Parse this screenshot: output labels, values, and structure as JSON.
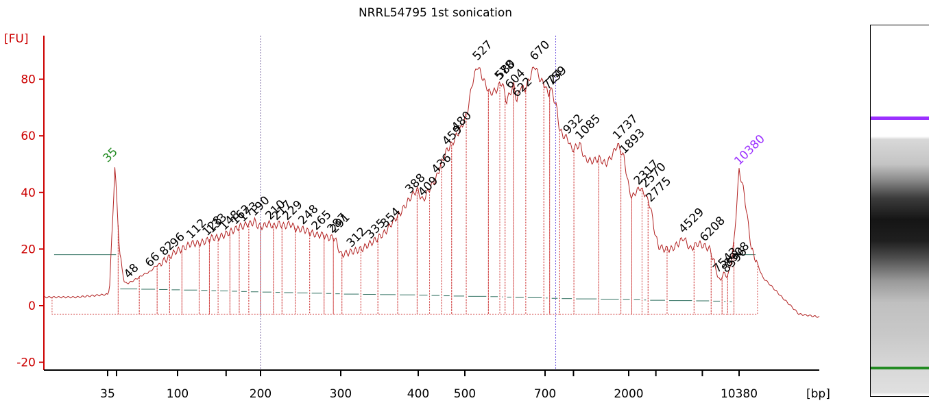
{
  "chart_data": {
    "type": "line",
    "title": "NRRL54795 1st sonication",
    "ylabel": "[FU]",
    "xlabel": "[bp]",
    "ylim": [
      -22,
      92
    ],
    "yticks": [
      -20,
      0,
      20,
      40,
      60,
      80
    ],
    "xtick_labels": [
      "35",
      "100",
      "200",
      "300",
      "400",
      "500",
      "700",
      "2000",
      "10380"
    ],
    "grid": false,
    "colors": {
      "axis": "#cc0000",
      "trace": "#b22222",
      "lower_marker": "#228b22",
      "upper_marker": "#9b30ff",
      "baseline": "#2f6f5f"
    },
    "markers": [
      {
        "label": "35",
        "role": "lower",
        "value": 49
      },
      {
        "label": "10380",
        "role": "upper",
        "value": 48
      }
    ],
    "peak_labels": [
      "48",
      "66",
      "82",
      "96",
      "112",
      "128",
      "133",
      "148",
      "162",
      "173",
      "190",
      "210",
      "217",
      "229",
      "248",
      "265",
      "287",
      "291",
      "312",
      "335",
      "354",
      "388",
      "409",
      "436",
      "459",
      "480",
      "527",
      "578",
      "580",
      "604",
      "622",
      "670",
      "724",
      "759",
      "932",
      "1085",
      "1737",
      "1893",
      "2317",
      "2570",
      "2775",
      "4529",
      "6208",
      "7543",
      "8596",
      "8908"
    ],
    "series": [
      {
        "x": [
          33,
          34,
          35,
          36,
          37,
          39,
          42,
          45,
          48,
          52,
          56,
          60,
          66,
          72,
          78,
          82,
          88,
          96,
          104,
          112,
          120,
          128,
          133,
          140,
          148,
          155,
          162,
          168,
          173,
          180,
          186,
          190,
          196,
          202,
          208,
          214,
          220,
          226,
          232,
          240,
          248,
          256,
          265,
          275,
          280,
          287,
          291,
          300,
          312,
          324,
          335,
          345,
          354,
          365,
          375,
          388,
          398,
          409,
          418,
          428,
          436,
          446,
          459,
          470,
          480,
          492,
          505,
          515,
          527,
          540,
          555,
          570,
          578,
          585,
          595,
          604,
          614,
          622,
          632,
          642,
          655,
          670,
          685,
          700,
          715,
          730,
          745,
          759,
          770,
          790,
          810,
          840,
          880,
          932,
          980,
          1030,
          1085,
          1150,
          1250,
          1380,
          1500,
          1620,
          1737,
          1800,
          1893,
          1950,
          2000,
          2100,
          2200,
          2317,
          2400,
          2500,
          2570,
          2650,
          2775,
          2900,
          3100,
          3400,
          3800,
          4200,
          4529,
          5000,
          5600,
          6208,
          6700,
          7200,
          7543,
          7900,
          8300,
          8596,
          8800,
          8908,
          9200,
          9600,
          10000,
          10380,
          10700,
          11200,
          12000,
          13500,
          15000,
          17000
        ],
        "values": [
          3,
          3,
          4,
          6,
          20,
          49,
          18,
          8,
          8,
          9,
          10,
          11,
          12,
          14,
          15,
          16,
          17,
          19,
          20,
          22,
          22,
          23,
          24,
          24,
          25,
          26,
          27,
          28,
          28,
          29,
          29,
          30,
          28,
          28,
          29,
          28,
          29,
          28,
          29,
          27,
          27,
          26,
          25,
          25,
          24,
          24,
          24,
          18,
          19,
          20,
          22,
          24,
          26,
          30,
          33,
          38,
          41,
          37,
          40,
          43,
          45,
          50,
          55,
          57,
          60,
          63,
          68,
          78,
          85,
          80,
          75,
          76,
          78,
          79,
          72,
          75,
          78,
          72,
          78,
          76,
          80,
          85,
          80,
          78,
          76,
          74,
          77,
          76,
          75,
          72,
          70,
          62,
          60,
          59,
          55,
          56,
          57,
          52,
          51,
          52,
          50,
          53,
          57,
          55,
          52,
          46,
          42,
          38,
          40,
          41,
          42,
          39,
          40,
          37,
          35,
          28,
          21,
          20,
          20,
          22,
          24,
          20,
          22,
          21,
          20,
          15,
          10,
          9,
          12,
          10,
          11,
          12,
          15,
          22,
          35,
          48,
          40,
          20,
          10,
          3,
          -3,
          -4
        ]
      }
    ]
  }
}
